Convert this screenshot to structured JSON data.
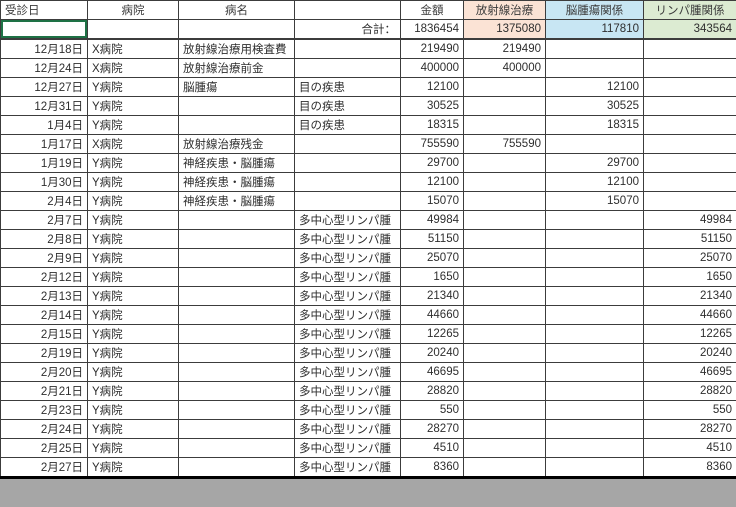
{
  "table": {
    "headers": [
      "受診日",
      "病院",
      "病名",
      "",
      "金額",
      "放射線治療",
      "脳腫瘍関係",
      "リンパ腫関係"
    ],
    "total": {
      "label": "合計：",
      "amount": "1836454",
      "radiation": "1375080",
      "brain": "117810",
      "lymphoma": "343564"
    },
    "rows": [
      [
        "12月18日",
        "X病院",
        "放射線治療用検査費",
        "",
        "219490",
        "219490",
        "",
        ""
      ],
      [
        "12月24日",
        "X病院",
        "放射線治療前金",
        "",
        "400000",
        "400000",
        "",
        ""
      ],
      [
        "12月27日",
        "Y病院",
        "脳腫瘍",
        "目の疾患",
        "12100",
        "",
        "12100",
        ""
      ],
      [
        "12月31日",
        "Y病院",
        "",
        "目の疾患",
        "30525",
        "",
        "30525",
        ""
      ],
      [
        "1月4日",
        "Y病院",
        "",
        "目の疾患",
        "18315",
        "",
        "18315",
        ""
      ],
      [
        "1月17日",
        "X病院",
        "放射線治療残金",
        "",
        "755590",
        "755590",
        "",
        ""
      ],
      [
        "1月19日",
        "Y病院",
        "神経疾患・脳腫瘍",
        "",
        "29700",
        "",
        "29700",
        ""
      ],
      [
        "1月30日",
        "Y病院",
        "神経疾患・脳腫瘍",
        "",
        "12100",
        "",
        "12100",
        ""
      ],
      [
        "2月4日",
        "Y病院",
        "神経疾患・脳腫瘍",
        "",
        "15070",
        "",
        "15070",
        ""
      ],
      [
        "2月7日",
        "Y病院",
        "",
        "多中心型リンパ腫",
        "49984",
        "",
        "",
        "49984"
      ],
      [
        "2月8日",
        "Y病院",
        "",
        "多中心型リンパ腫",
        "51150",
        "",
        "",
        "51150"
      ],
      [
        "2月9日",
        "Y病院",
        "",
        "多中心型リンパ腫",
        "25070",
        "",
        "",
        "25070"
      ],
      [
        "2月12日",
        "Y病院",
        "",
        "多中心型リンパ腫",
        "1650",
        "",
        "",
        "1650"
      ],
      [
        "2月13日",
        "Y病院",
        "",
        "多中心型リンパ腫",
        "21340",
        "",
        "",
        "21340"
      ],
      [
        "2月14日",
        "Y病院",
        "",
        "多中心型リンパ腫",
        "44660",
        "",
        "",
        "44660"
      ],
      [
        "2月15日",
        "Y病院",
        "",
        "多中心型リンパ腫",
        "12265",
        "",
        "",
        "12265"
      ],
      [
        "2月19日",
        "Y病院",
        "",
        "多中心型リンパ腫",
        "20240",
        "",
        "",
        "20240"
      ],
      [
        "2月20日",
        "Y病院",
        "",
        "多中心型リンパ腫",
        "46695",
        "",
        "",
        "46695"
      ],
      [
        "2月21日",
        "Y病院",
        "",
        "多中心型リンパ腫",
        "28820",
        "",
        "",
        "28820"
      ],
      [
        "2月23日",
        "Y病院",
        "",
        "多中心型リンパ腫",
        "550",
        "",
        "",
        "550"
      ],
      [
        "2月24日",
        "Y病院",
        "",
        "多中心型リンパ腫",
        "28270",
        "",
        "",
        "28270"
      ],
      [
        "2月25日",
        "Y病院",
        "",
        "多中心型リンパ腫",
        "4510",
        "",
        "",
        "4510"
      ],
      [
        "2月27日",
        "Y病院",
        "",
        "多中心型リンパ腫",
        "8360",
        "",
        "",
        "8360"
      ]
    ]
  },
  "colors": {
    "radiation_bg": "#FBE3D5",
    "brain_bg": "#C8E6F3",
    "lymphoma_bg": "#DCEBD2",
    "selection_border": "#1E7145"
  }
}
